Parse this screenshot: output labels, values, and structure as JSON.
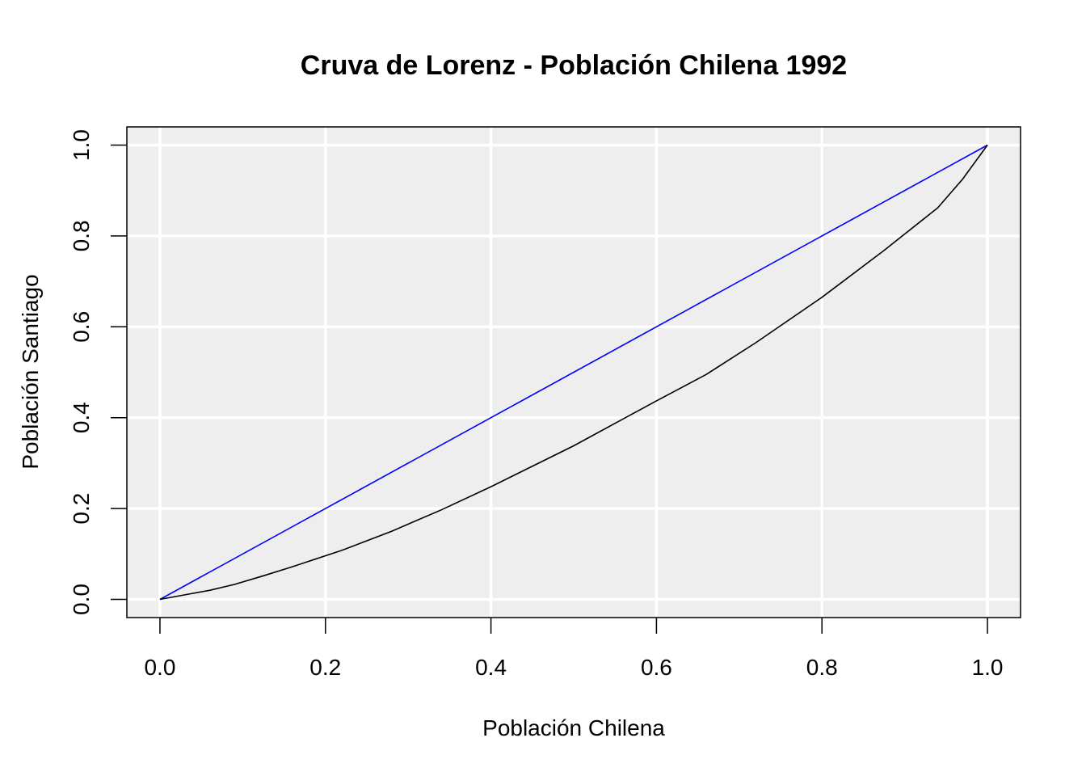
{
  "chart_data": {
    "type": "line",
    "title": "Cruva de Lorenz - Población Chilena 1992",
    "xlabel": "Población Chilena",
    "ylabel": "Población Santiago",
    "xlim": [
      -0.04,
      1.04
    ],
    "ylim": [
      -0.04,
      1.04
    ],
    "xticks": [
      "0.0",
      "0.2",
      "0.4",
      "0.6",
      "0.8",
      "1.0"
    ],
    "yticks": [
      "0.0",
      "0.2",
      "0.4",
      "0.6",
      "0.8",
      "1.0"
    ],
    "grid": true,
    "background": "#eeeeee",
    "series": [
      {
        "color": "#0000ff",
        "x": [
          0,
          1
        ],
        "y": [
          0,
          1
        ]
      },
      {
        "color": "#000000",
        "x": [
          0,
          0.03,
          0.06,
          0.09,
          0.125,
          0.16,
          0.22,
          0.28,
          0.34,
          0.4,
          0.5,
          0.6,
          0.66,
          0.72,
          0.8,
          0.875,
          0.94,
          0.97,
          1.0
        ],
        "y": [
          0,
          0.01,
          0.02,
          0.033,
          0.052,
          0.072,
          0.108,
          0.15,
          0.197,
          0.248,
          0.338,
          0.437,
          0.495,
          0.565,
          0.665,
          0.768,
          0.862,
          0.925,
          1.0
        ]
      }
    ]
  }
}
